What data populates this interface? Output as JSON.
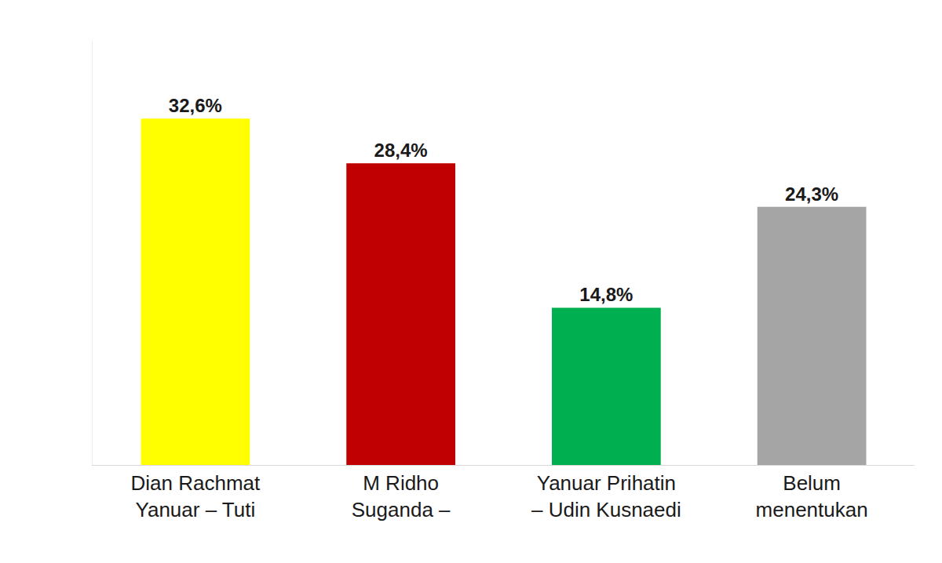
{
  "chart_data": {
    "type": "bar",
    "categories": [
      "Dian Rachmat\nYanuar – Tuti",
      "M Ridho\nSuganda –",
      "Yanuar Prihatin\n– Udin Kusnaedi",
      "Belum\nmenentukan"
    ],
    "values": [
      32.6,
      28.4,
      14.8,
      24.3
    ],
    "value_labels": [
      "32,6%",
      "28,4%",
      "14,8%",
      "24,3%"
    ],
    "colors": [
      "#ffff00",
      "#c00000",
      "#00b050",
      "#a5a5a5"
    ],
    "ylim": [
      0,
      40
    ],
    "yticks": [],
    "grid": false,
    "data_labels": true,
    "tick_labels": "x"
  }
}
